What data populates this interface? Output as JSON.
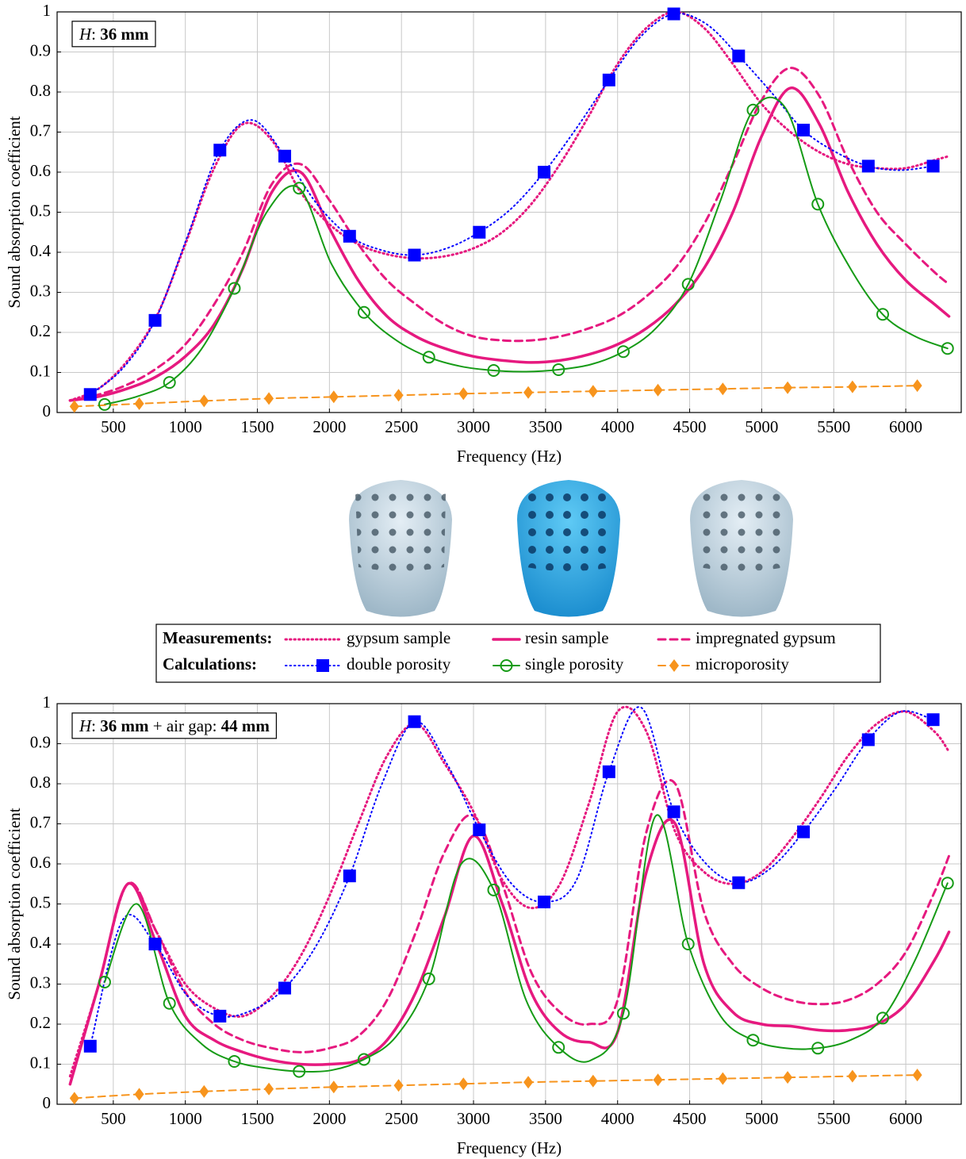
{
  "chart_data": [
    {
      "type": "line",
      "annotation": [
        {
          "text": "H",
          "style": "italic"
        },
        {
          "text": ": "
        },
        {
          "text": "36 mm",
          "style": "bold"
        }
      ],
      "x_label": "Frequency (Hz)",
      "y_label": "Sound absorption coefficient",
      "xlim": [
        110,
        6385
      ],
      "ylim": [
        0,
        1
      ],
      "xticks": [
        500,
        1000,
        1500,
        2000,
        2500,
        3000,
        3500,
        4000,
        4500,
        5000,
        5500,
        6000
      ],
      "yticks": [
        0,
        0.1,
        0.2,
        0.3,
        0.4,
        0.5,
        0.6,
        0.7,
        0.8,
        0.9,
        1
      ],
      "grid": true,
      "series": [
        {
          "name": "gypsum sample",
          "color": "#e6197f",
          "dash": "dotted",
          "width": 3,
          "x": [
            200,
            400,
            600,
            800,
            1000,
            1200,
            1400,
            1600,
            1800,
            2000,
            2200,
            2400,
            2600,
            2800,
            3000,
            3200,
            3400,
            3600,
            3800,
            4000,
            4200,
            4400,
            4600,
            4800,
            5000,
            5200,
            5400,
            5600,
            5800,
            6000,
            6200,
            6300
          ],
          "values": [
            0.03,
            0.06,
            0.13,
            0.24,
            0.42,
            0.61,
            0.72,
            0.68,
            0.55,
            0.47,
            0.42,
            0.395,
            0.385,
            0.39,
            0.41,
            0.45,
            0.52,
            0.62,
            0.74,
            0.87,
            0.96,
            1.0,
            0.96,
            0.87,
            0.77,
            0.7,
            0.65,
            0.62,
            0.61,
            0.61,
            0.63,
            0.64
          ]
        },
        {
          "name": "resin sample",
          "color": "#e6197f",
          "dash": "solid",
          "width": 3.5,
          "x": [
            200,
            400,
            600,
            800,
            1000,
            1200,
            1400,
            1600,
            1800,
            2000,
            2200,
            2400,
            2600,
            2800,
            3000,
            3200,
            3400,
            3600,
            3800,
            4000,
            4200,
            4400,
            4600,
            4800,
            5000,
            5200,
            5400,
            5600,
            5800,
            6000,
            6200,
            6300
          ],
          "values": [
            0.03,
            0.04,
            0.06,
            0.09,
            0.14,
            0.22,
            0.36,
            0.55,
            0.6,
            0.46,
            0.33,
            0.24,
            0.19,
            0.16,
            0.14,
            0.13,
            0.125,
            0.13,
            0.145,
            0.17,
            0.21,
            0.27,
            0.36,
            0.5,
            0.69,
            0.81,
            0.72,
            0.55,
            0.42,
            0.33,
            0.27,
            0.24
          ]
        },
        {
          "name": "impregnated gypsum",
          "color": "#e6197f",
          "dash": "dashed",
          "width": 3,
          "x": [
            200,
            400,
            600,
            800,
            1000,
            1200,
            1400,
            1600,
            1800,
            2000,
            2200,
            2400,
            2600,
            2800,
            3000,
            3200,
            3400,
            3600,
            3800,
            4000,
            4200,
            4400,
            4600,
            4800,
            5000,
            5200,
            5400,
            5600,
            5800,
            6000,
            6200,
            6300
          ],
          "values": [
            0.03,
            0.045,
            0.07,
            0.11,
            0.17,
            0.27,
            0.4,
            0.57,
            0.62,
            0.53,
            0.42,
            0.33,
            0.27,
            0.22,
            0.19,
            0.18,
            0.18,
            0.19,
            0.21,
            0.24,
            0.29,
            0.36,
            0.47,
            0.62,
            0.78,
            0.86,
            0.79,
            0.63,
            0.5,
            0.42,
            0.35,
            0.32
          ]
        },
        {
          "name": "double porosity",
          "color": "#0000ff",
          "dash": "dotted",
          "width": 2,
          "marker": "square",
          "marker_every": 2,
          "x": [
            340,
            565,
            790,
            1015,
            1240,
            1465,
            1690,
            1915,
            2140,
            2365,
            2590,
            2815,
            3040,
            3265,
            3490,
            3715,
            3940,
            4165,
            4390,
            4615,
            4840,
            5065,
            5290,
            5515,
            5740,
            5965,
            6190
          ],
          "values": [
            0.045,
            0.11,
            0.23,
            0.44,
            0.655,
            0.73,
            0.64,
            0.52,
            0.44,
            0.405,
            0.393,
            0.41,
            0.45,
            0.51,
            0.6,
            0.71,
            0.83,
            0.94,
            0.995,
            0.97,
            0.89,
            0.8,
            0.705,
            0.65,
            0.615,
            0.605,
            0.615
          ]
        },
        {
          "name": "single porosity",
          "color": "#169b16",
          "dash": "solid",
          "width": 2,
          "marker": "circle",
          "marker_every": 2,
          "x": [
            440,
            665,
            890,
            1115,
            1340,
            1565,
            1790,
            2015,
            2240,
            2465,
            2690,
            2915,
            3140,
            3365,
            3590,
            3815,
            4040,
            4265,
            4490,
            4715,
            4940,
            5165,
            5390,
            5615,
            5840,
            6065,
            6290
          ],
          "values": [
            0.02,
            0.04,
            0.075,
            0.16,
            0.31,
            0.5,
            0.56,
            0.37,
            0.25,
            0.18,
            0.138,
            0.115,
            0.105,
            0.102,
            0.107,
            0.12,
            0.152,
            0.21,
            0.32,
            0.53,
            0.755,
            0.76,
            0.52,
            0.36,
            0.245,
            0.19,
            0.16
          ]
        },
        {
          "name": "microporosity",
          "color": "#f7941d",
          "dash": "dashed",
          "width": 2,
          "marker": "diamond",
          "marker_every": 1,
          "x": [
            230,
            680,
            1130,
            1580,
            2030,
            2480,
            2930,
            3380,
            3830,
            4280,
            4730,
            5180,
            5630,
            6080
          ],
          "values": [
            0.015,
            0.022,
            0.029,
            0.035,
            0.039,
            0.043,
            0.047,
            0.05,
            0.053,
            0.056,
            0.059,
            0.062,
            0.064,
            0.067
          ]
        }
      ]
    },
    {
      "type": "line",
      "annotation": [
        {
          "text": "H",
          "style": "italic"
        },
        {
          "text": ": "
        },
        {
          "text": "36 mm",
          "style": "bold"
        },
        {
          "text": " + air gap: "
        },
        {
          "text": "44 mm",
          "style": "bold"
        }
      ],
      "x_label": "Frequency (Hz)",
      "y_label": "Sound absorption coefficient",
      "xlim": [
        110,
        6385
      ],
      "ylim": [
        0,
        1
      ],
      "xticks": [
        500,
        1000,
        1500,
        2000,
        2500,
        3000,
        3500,
        4000,
        4500,
        5000,
        5500,
        6000
      ],
      "yticks": [
        0,
        0.1,
        0.2,
        0.3,
        0.4,
        0.5,
        0.6,
        0.7,
        0.8,
        0.9,
        1
      ],
      "grid": true,
      "series": [
        {
          "name": "gypsum sample",
          "color": "#e6197f",
          "dash": "dotted",
          "width": 3,
          "x": [
            200,
            400,
            600,
            800,
            1000,
            1200,
            1400,
            1600,
            1800,
            2000,
            2200,
            2400,
            2600,
            2800,
            3000,
            3200,
            3400,
            3600,
            3800,
            4000,
            4200,
            4400,
            4600,
            4800,
            5000,
            5200,
            5400,
            5600,
            5800,
            6000,
            6200,
            6300
          ],
          "values": [
            0.07,
            0.3,
            0.55,
            0.43,
            0.3,
            0.24,
            0.22,
            0.27,
            0.37,
            0.52,
            0.7,
            0.87,
            0.95,
            0.85,
            0.73,
            0.56,
            0.49,
            0.55,
            0.75,
            0.98,
            0.93,
            0.68,
            0.58,
            0.55,
            0.58,
            0.66,
            0.76,
            0.87,
            0.95,
            0.98,
            0.93,
            0.88
          ]
        },
        {
          "name": "resin sample",
          "color": "#e6197f",
          "dash": "solid",
          "width": 3.5,
          "x": [
            200,
            400,
            600,
            800,
            1000,
            1200,
            1400,
            1600,
            1800,
            2000,
            2200,
            2400,
            2600,
            2800,
            3000,
            3200,
            3400,
            3600,
            3800,
            4000,
            4200,
            4400,
            4600,
            4800,
            5000,
            5200,
            5400,
            5600,
            5800,
            6000,
            6200,
            6300
          ],
          "values": [
            0.05,
            0.3,
            0.55,
            0.4,
            0.22,
            0.16,
            0.13,
            0.11,
            0.1,
            0.1,
            0.11,
            0.16,
            0.28,
            0.47,
            0.67,
            0.5,
            0.28,
            0.18,
            0.155,
            0.18,
            0.58,
            0.7,
            0.35,
            0.23,
            0.2,
            0.195,
            0.185,
            0.185,
            0.2,
            0.25,
            0.36,
            0.43
          ]
        },
        {
          "name": "impregnated gypsum",
          "color": "#e6197f",
          "dash": "dashed",
          "width": 3,
          "x": [
            200,
            400,
            600,
            800,
            1000,
            1200,
            1400,
            1600,
            1800,
            2000,
            2200,
            2400,
            2600,
            2800,
            3000,
            3200,
            3400,
            3600,
            3800,
            4000,
            4200,
            4400,
            4600,
            4800,
            5000,
            5200,
            5400,
            5600,
            5800,
            6000,
            6200,
            6300
          ],
          "values": [
            0.05,
            0.3,
            0.55,
            0.43,
            0.28,
            0.2,
            0.16,
            0.14,
            0.13,
            0.14,
            0.17,
            0.26,
            0.43,
            0.63,
            0.72,
            0.55,
            0.33,
            0.23,
            0.2,
            0.26,
            0.68,
            0.8,
            0.48,
            0.35,
            0.29,
            0.26,
            0.25,
            0.26,
            0.3,
            0.38,
            0.53,
            0.62
          ]
        },
        {
          "name": "double porosity",
          "color": "#0000ff",
          "dash": "dotted",
          "width": 2,
          "marker": "square",
          "marker_every": 2,
          "x": [
            340,
            565,
            790,
            1015,
            1240,
            1465,
            1690,
            1915,
            2140,
            2365,
            2590,
            2815,
            3040,
            3265,
            3490,
            3715,
            3940,
            4165,
            4390,
            4615,
            4840,
            5065,
            5290,
            5515,
            5740,
            5965,
            6190
          ],
          "values": [
            0.145,
            0.46,
            0.4,
            0.27,
            0.22,
            0.235,
            0.29,
            0.4,
            0.57,
            0.8,
            0.955,
            0.85,
            0.685,
            0.55,
            0.505,
            0.56,
            0.83,
            0.99,
            0.73,
            0.6,
            0.553,
            0.59,
            0.68,
            0.79,
            0.91,
            0.98,
            0.96
          ]
        },
        {
          "name": "single porosity",
          "color": "#169b16",
          "dash": "solid",
          "width": 2,
          "marker": "circle",
          "marker_every": 2,
          "x": [
            440,
            665,
            890,
            1115,
            1340,
            1565,
            1790,
            2015,
            2240,
            2465,
            2690,
            2915,
            3140,
            3365,
            3590,
            3815,
            4040,
            4265,
            4490,
            4715,
            4940,
            5165,
            5390,
            5615,
            5840,
            6065,
            6290
          ],
          "values": [
            0.305,
            0.5,
            0.252,
            0.15,
            0.107,
            0.09,
            0.082,
            0.085,
            0.112,
            0.17,
            0.313,
            0.6,
            0.535,
            0.26,
            0.142,
            0.11,
            0.227,
            0.72,
            0.4,
            0.22,
            0.16,
            0.14,
            0.14,
            0.16,
            0.215,
            0.36,
            0.552
          ]
        },
        {
          "name": "microporosity",
          "color": "#f7941d",
          "dash": "dashed",
          "width": 2,
          "marker": "diamond",
          "marker_every": 1,
          "x": [
            230,
            680,
            1130,
            1580,
            2030,
            2480,
            2930,
            3380,
            3830,
            4280,
            4730,
            5180,
            5630,
            6080
          ],
          "values": [
            0.015,
            0.025,
            0.032,
            0.038,
            0.043,
            0.047,
            0.051,
            0.055,
            0.058,
            0.061,
            0.064,
            0.067,
            0.07,
            0.073
          ]
        }
      ]
    }
  ],
  "legend": {
    "groups": [
      "Measurements:",
      "Calculations:"
    ]
  }
}
